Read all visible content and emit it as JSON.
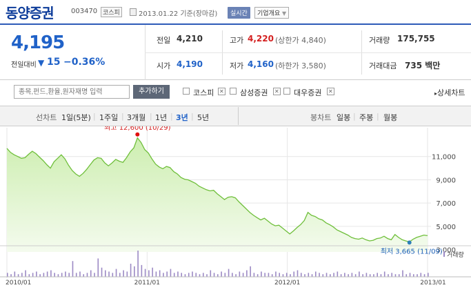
{
  "header": {
    "name": "동양증권",
    "code": "003470",
    "market": "코스피",
    "date": "2013.01.22 기준(장마감)",
    "realtime": "실시간",
    "company_info": "기업개요"
  },
  "price": {
    "current": "4,195",
    "change_label": "전일대비",
    "change_arrow": "▼",
    "change_value": "15",
    "change_pct": "−0.36%"
  },
  "metrics": {
    "prev_label": "전일",
    "prev": "4,210",
    "high_label": "고가",
    "high": "4,220",
    "upper_label": "(상한가 4,840)",
    "volume_label": "거래량",
    "volume": "175,755",
    "open_label": "시가",
    "open": "4,190",
    "low_label": "저가",
    "low": "4,160",
    "lower_label": "(하한가 3,580)",
    "amount_label": "거래대금",
    "amount": "735 백만"
  },
  "compare": {
    "placeholder": "종목,펀드,환율,원자재명 입력",
    "add_label": "추가하기",
    "items": [
      "코스피",
      "삼성증권",
      "대우증권"
    ],
    "detail": "상세차트"
  },
  "periods": {
    "line_label": "선차트",
    "line_options": [
      "1일(5분)",
      "1주일",
      "3개월",
      "1년",
      "3년",
      "5년"
    ],
    "selected": "3년",
    "candle_label": "봉차트",
    "candle_options": [
      "일봉",
      "주봉",
      "월봉"
    ]
  },
  "chart_data": {
    "type": "area",
    "x_ticks": [
      "2010/01",
      "2011/01",
      "2012/01",
      "2013/01"
    ],
    "y_ticks": [
      "11,000",
      "9,000",
      "7,000",
      "5,000",
      "3,000"
    ],
    "ylim": [
      2800,
      13000
    ],
    "max_annotation": "최고 12,600 (10/29)",
    "max_value": 12600,
    "min_annotation": "최저 3,665 (11/09)",
    "min_value": 3665,
    "volume_legend": "거래량",
    "series": [
      {
        "values": [
          11700,
          11350,
          11150,
          11000,
          10850,
          10900,
          11200,
          11450,
          11250,
          10950,
          10650,
          10300,
          10000,
          10550,
          10850,
          11150,
          10800,
          10250,
          9800,
          9500,
          9300,
          9550,
          9900,
          10300,
          10700,
          10900,
          10850,
          10450,
          10200,
          10450,
          10750,
          10600,
          10500,
          10900,
          11400,
          11750,
          12600,
          12200,
          11600,
          11300,
          10800,
          10350,
          10100,
          9950,
          10150,
          10050,
          9700,
          9500,
          9200,
          9050,
          9000,
          8850,
          8700,
          8450,
          8300,
          8150,
          8050,
          8100,
          7800,
          7550,
          7300,
          7500,
          7550,
          7450,
          7100,
          6800,
          6500,
          6200,
          5950,
          5750,
          5550,
          5700,
          5450,
          5200,
          5050,
          5100,
          4850,
          4600,
          4350,
          4600,
          4900,
          5150,
          5500,
          6200,
          5950,
          5850,
          5650,
          5550,
          5300,
          5150,
          4950,
          4700,
          4550,
          4400,
          4250,
          4050,
          3950,
          3900,
          4000,
          3850,
          3750,
          3800,
          3950,
          4000,
          4150,
          3950,
          3850,
          4300,
          4050,
          3850,
          3750,
          3665,
          3900,
          4050,
          4150,
          4250,
          4200
        ]
      }
    ],
    "volume": [
      3,
      2,
      4,
      2,
      3,
      5,
      2,
      3,
      4,
      2,
      3,
      4,
      5,
      3,
      2,
      3,
      4,
      3,
      12,
      3,
      4,
      2,
      3,
      5,
      3,
      14,
      7,
      5,
      4,
      3,
      6,
      3,
      5,
      4,
      10,
      8,
      20,
      9,
      6,
      5,
      7,
      4,
      5,
      3,
      4,
      6,
      3,
      4,
      3,
      2,
      3,
      4,
      3,
      2,
      3,
      2,
      5,
      3,
      2,
      4,
      3,
      6,
      3,
      2,
      4,
      3,
      5,
      8,
      3,
      2,
      4,
      3,
      3,
      2,
      4,
      3,
      2,
      3,
      2,
      4,
      5,
      3,
      2,
      3,
      2,
      4,
      3,
      2,
      3,
      2,
      3,
      4,
      2,
      3,
      2,
      3,
      2,
      4,
      2,
      3,
      2,
      2,
      3,
      2,
      4,
      2,
      3,
      2,
      2,
      5,
      2,
      3,
      2,
      2,
      3,
      2,
      3
    ]
  }
}
